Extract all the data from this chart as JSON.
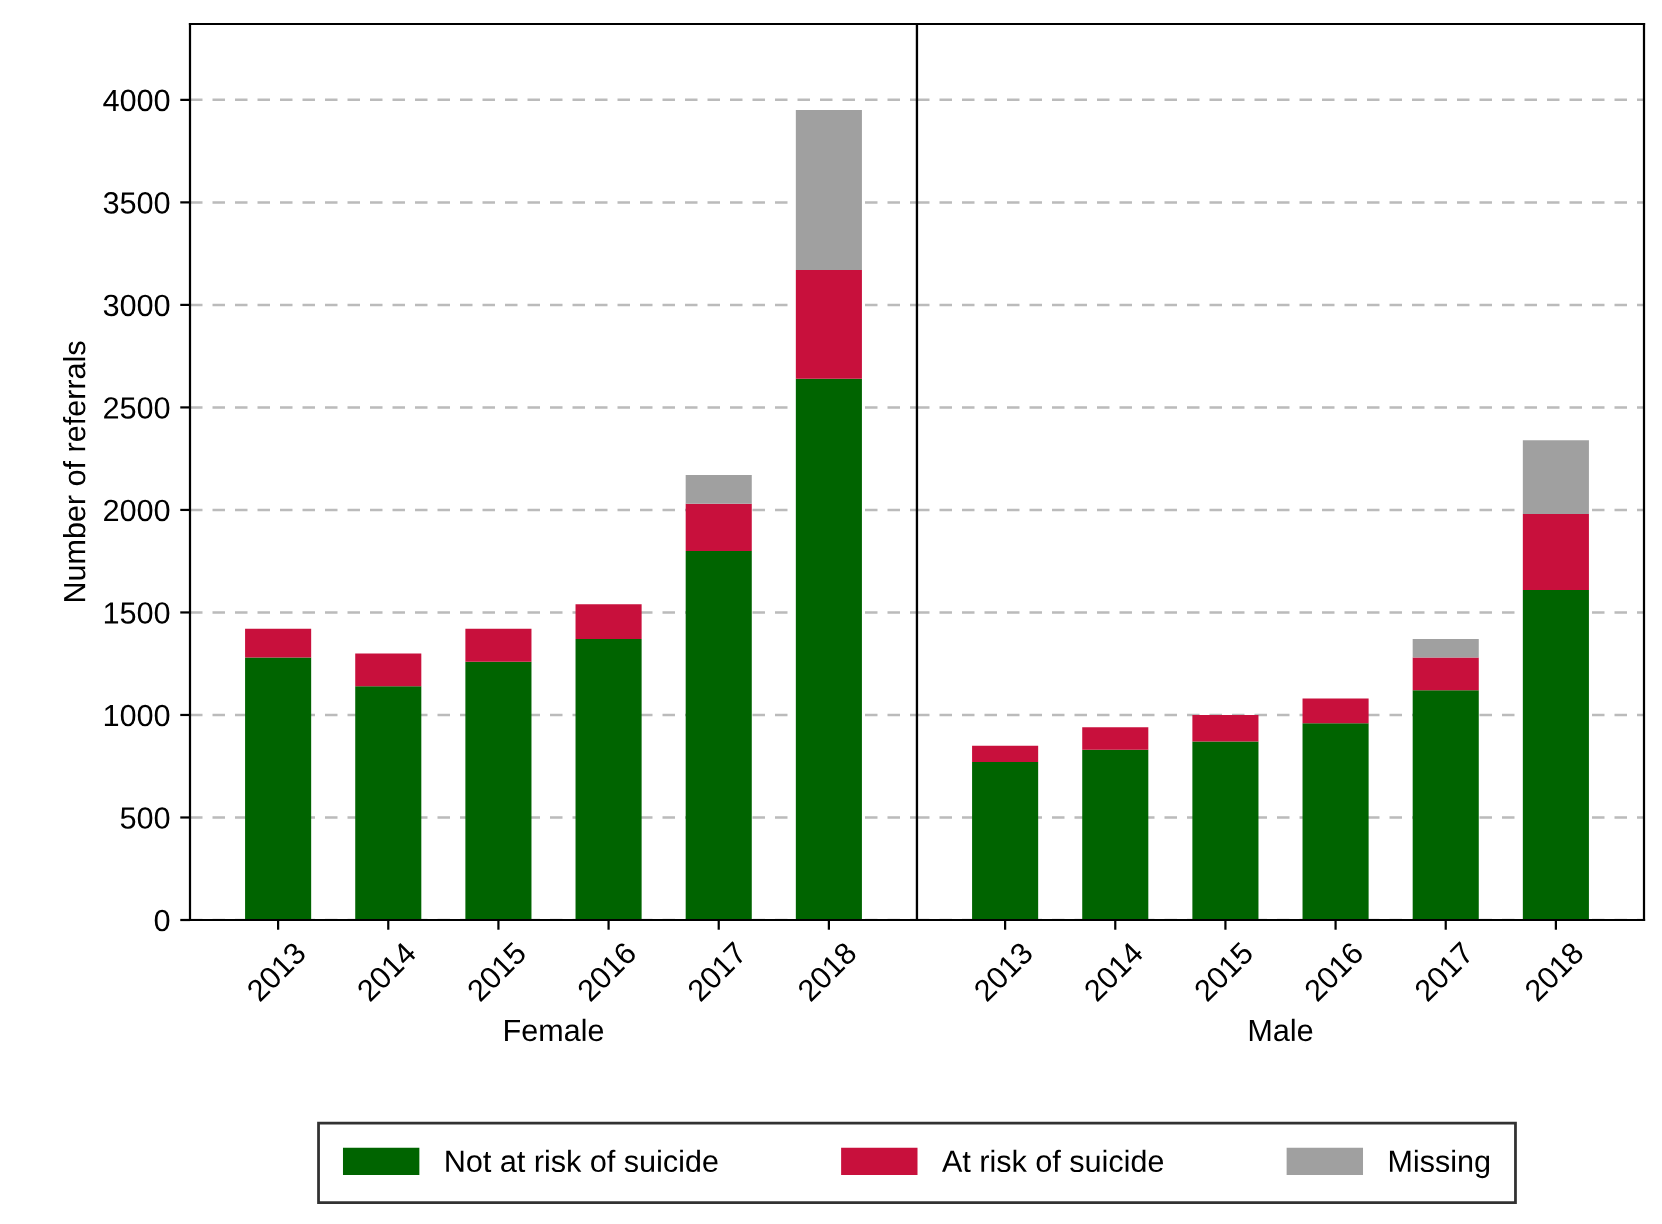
{
  "chart_data": [
    {
      "type": "bar",
      "stacked": true,
      "xlabel": "Female",
      "ylabel": "Number of referrals",
      "categories": [
        "2013",
        "2014",
        "2015",
        "2016",
        "2017",
        "2018"
      ],
      "ylim": [
        0,
        4370
      ],
      "yticks": [
        0,
        500,
        1000,
        1500,
        2000,
        2500,
        3000,
        3500,
        4000
      ],
      "grid": "y",
      "legend": "bottom",
      "series": [
        {
          "name": "Not at risk of suicide",
          "color": "#006400",
          "values": [
            1280,
            1140,
            1260,
            1370,
            1800,
            2640
          ]
        },
        {
          "name": "At risk of suicide",
          "color": "#c8103c",
          "values": [
            140,
            160,
            160,
            170,
            230,
            530
          ]
        },
        {
          "name": "Missing",
          "color": "#a0a0a0",
          "values": [
            null,
            null,
            null,
            null,
            140,
            780
          ]
        }
      ]
    },
    {
      "type": "bar",
      "stacked": true,
      "xlabel": "Male",
      "categories": [
        "2013",
        "2014",
        "2015",
        "2016",
        "2017",
        "2018"
      ],
      "ylim": [
        0,
        4370
      ],
      "yticks": [
        0,
        500,
        1000,
        1500,
        2000,
        2500,
        3000,
        3500,
        4000
      ],
      "grid": "y",
      "tick_labels": "x",
      "series": [
        {
          "color": "#006400",
          "values": [
            770,
            830,
            870,
            960,
            1120,
            1610
          ]
        },
        {
          "color": "#c8103c",
          "values": [
            80,
            110,
            130,
            120,
            160,
            370
          ]
        },
        {
          "color": "#a0a0a0",
          "values": [
            null,
            null,
            null,
            null,
            90,
            360
          ]
        }
      ]
    }
  ]
}
